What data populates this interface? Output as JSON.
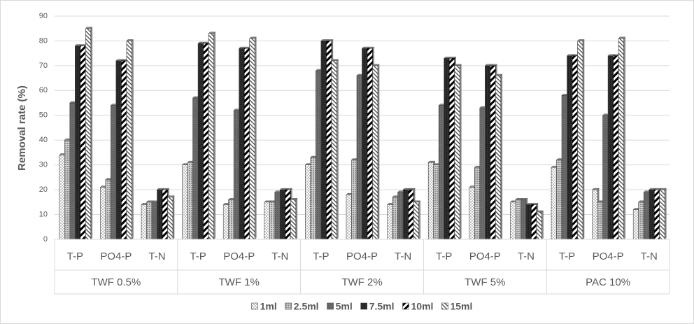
{
  "chart_data": {
    "type": "bar",
    "y_label": "Removal rate (%)",
    "groups": [
      "TWF 0.5%",
      "TWF 1%",
      "TWF 2%",
      "TWF 5%",
      "PAC 10%"
    ],
    "categories": [
      "T-P",
      "PO4-P",
      "T-N",
      "T-P",
      "PO4-P",
      "T-N",
      "T-P",
      "PO4-P",
      "T-N",
      "T-P",
      "PO4-P",
      "T-N",
      "T-P",
      "PO4-P",
      "T-N"
    ],
    "ylim": [
      0,
      90
    ],
    "yticks": [
      0,
      10,
      20,
      30,
      40,
      50,
      60,
      70,
      80,
      90
    ],
    "grid": true,
    "legend": "bottom",
    "series": [
      {
        "name": "1ml",
        "color": "#d9d9d9",
        "values": [
          34,
          21,
          14,
          30,
          14,
          15,
          30,
          18,
          14,
          31,
          21,
          15,
          29,
          20,
          12
        ]
      },
      {
        "name": "2.5ml",
        "color": "#a6a6a6",
        "values": [
          40,
          24,
          15,
          31,
          16,
          15,
          33,
          32,
          17,
          30,
          29,
          16,
          32,
          15,
          15
        ]
      },
      {
        "name": "5ml",
        "color": "#7f7f7f",
        "values": [
          55,
          54,
          15,
          57,
          52,
          19,
          68,
          66,
          19,
          54,
          53,
          16,
          58,
          50,
          19
        ]
      },
      {
        "name": "7.5ml",
        "color": "#262626",
        "values": [
          78,
          72,
          20,
          79,
          77,
          20,
          80,
          77,
          20,
          73,
          70,
          14,
          74,
          74,
          20
        ]
      },
      {
        "name": "10ml",
        "color": "#000000",
        "values": [
          78,
          72,
          20,
          79,
          77,
          20,
          80,
          77,
          20,
          73,
          70,
          14,
          74,
          74,
          20
        ]
      },
      {
        "name": "15ml",
        "color": "#595959",
        "values": [
          85,
          80,
          17,
          83,
          81,
          16,
          72,
          70,
          15,
          70,
          66,
          11,
          80,
          81,
          20
        ]
      }
    ]
  }
}
